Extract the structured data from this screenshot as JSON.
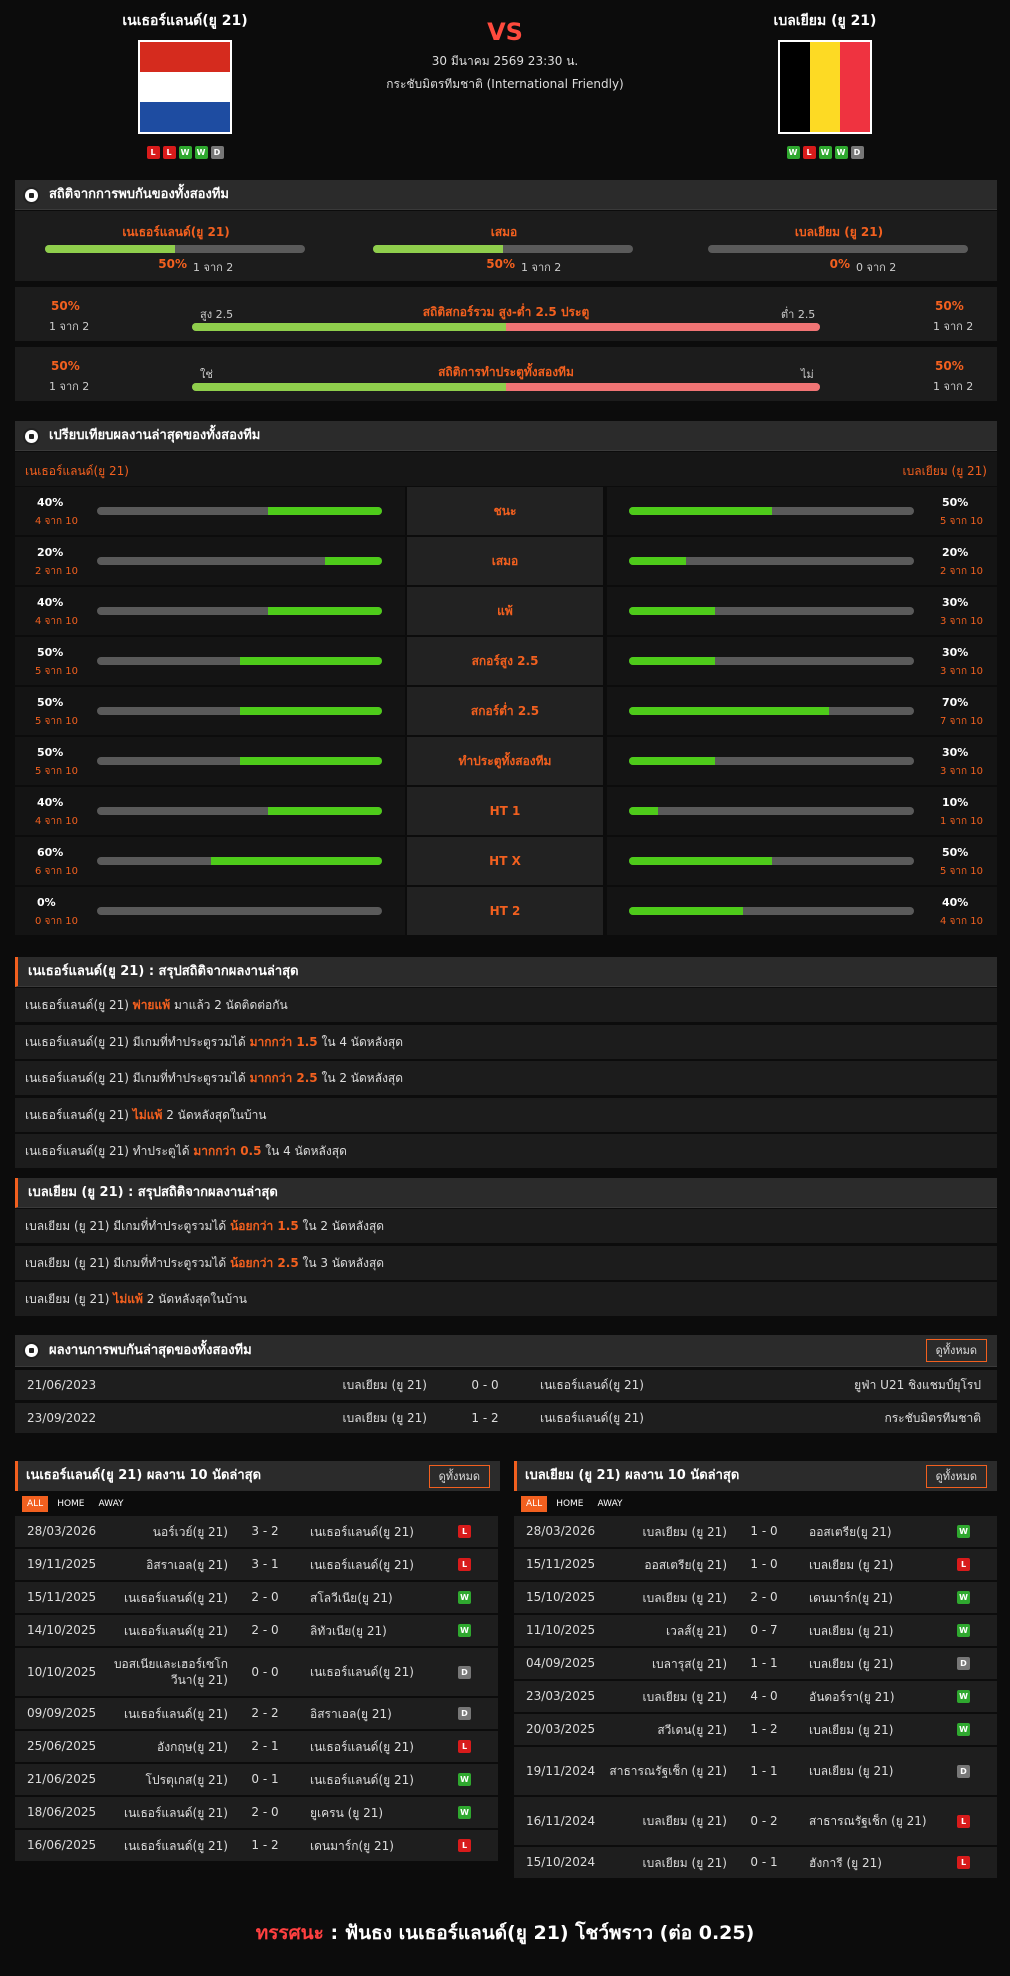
{
  "header": {
    "home": {
      "name": "เนเธอร์แลนด์(ยู 21)",
      "form": [
        "L",
        "L",
        "W",
        "W",
        "D"
      ]
    },
    "away": {
      "name": "เบลเยียม (ยู 21)",
      "form": [
        "W",
        "L",
        "W",
        "W",
        "D"
      ]
    },
    "vs": "VS",
    "date": "30 มีนาคม 2569 23:30 น.",
    "competition": "กระชับมิตรทีมชาติ (International Friendly)",
    "colors": {
      "nl_red": "#d52b1e",
      "nl_white": "#ffffff",
      "nl_blue": "#1e4ca1",
      "be_black": "#000000",
      "be_yellow": "#fdda24",
      "be_red": "#ef3340"
    }
  },
  "h2h_stats": {
    "title": "สถิติจากการพบกันของทั้งสองทีม",
    "cols": [
      {
        "label": "เนเธอร์แลนด์(ยู 21)",
        "pct": "50%",
        "sub": "1 จาก 2",
        "fill": 0.5
      },
      {
        "label": "เสมอ",
        "pct": "50%",
        "sub": "1 จาก 2",
        "fill": 0.5
      },
      {
        "label": "เบลเยียม (ยู 21)",
        "pct": "0%",
        "sub": "0 จาก 2",
        "fill": 0
      }
    ],
    "ou": {
      "title": "สถิติสกอร์รวม สูง-ต่ำ 2.5 ประตู",
      "left_label": "สูง 2.5",
      "right_label": "ต่ำ 2.5",
      "left_pct": "50%",
      "left_sub": "1 จาก 2",
      "right_pct": "50%",
      "right_sub": "1 จาก 2",
      "fill": 0.5
    },
    "btts": {
      "title": "สถิติการทำประตูทั้งสองทีม",
      "left_label": "ใช่",
      "right_label": "ไม่",
      "left_pct": "50%",
      "left_sub": "1 จาก 2",
      "right_pct": "50%",
      "right_sub": "1 จาก 2",
      "fill": 0.5
    }
  },
  "compare": {
    "title": "เปรียบเทียบผลงานล่าสุดของทั้งสองทีม",
    "home": "เนเธอร์แลนด์(ยู 21)",
    "away": "เบลเยียม (ยู 21)",
    "rows": [
      {
        "label": "ชนะ",
        "hp": "40%",
        "hs": "4 จาก 10",
        "hf": 0.4,
        "ap": "50%",
        "as": "5 จาก 10",
        "af": 0.5
      },
      {
        "label": "เสมอ",
        "hp": "20%",
        "hs": "2 จาก 10",
        "hf": 0.2,
        "ap": "20%",
        "as": "2 จาก 10",
        "af": 0.2
      },
      {
        "label": "แพ้",
        "hp": "40%",
        "hs": "4 จาก 10",
        "hf": 0.4,
        "ap": "30%",
        "as": "3 จาก 10",
        "af": 0.3
      },
      {
        "label": "สกอร์สูง 2.5",
        "hp": "50%",
        "hs": "5 จาก 10",
        "hf": 0.5,
        "ap": "30%",
        "as": "3 จาก 10",
        "af": 0.3
      },
      {
        "label": "สกอร์ต่ำ 2.5",
        "hp": "50%",
        "hs": "5 จาก 10",
        "hf": 0.5,
        "ap": "70%",
        "as": "7 จาก 10",
        "af": 0.7
      },
      {
        "label": "ทำประตูทั้งสองทีม",
        "hp": "50%",
        "hs": "5 จาก 10",
        "hf": 0.5,
        "ap": "30%",
        "as": "3 จาก 10",
        "af": 0.3
      },
      {
        "label": "HT 1",
        "hp": "40%",
        "hs": "4 จาก 10",
        "hf": 0.4,
        "ap": "10%",
        "as": "1 จาก 10",
        "af": 0.1
      },
      {
        "label": "HT X",
        "hp": "60%",
        "hs": "6 จาก 10",
        "hf": 0.6,
        "ap": "50%",
        "as": "5 จาก 10",
        "af": 0.5
      },
      {
        "label": "HT 2",
        "hp": "0%",
        "hs": "0 จาก 10",
        "hf": 0,
        "ap": "40%",
        "as": "4 จาก 10",
        "af": 0.4
      }
    ]
  },
  "home_summary": {
    "title": "เนเธอร์แลนด์(ยู 21) : สรุปสถิติจากผลงานล่าสุด",
    "rows": [
      {
        "a": "เนเธอร์แลนด์(ยู 21)",
        "b": "พ่ายแพ้",
        "c": "มาแล้ว 2 นัดติดต่อกัน"
      },
      {
        "a": "เนเธอร์แลนด์(ยู 21) มีเกมที่ทำประตูรวมได้",
        "b": "มากกว่า  1.5",
        "c": "ใน 4 นัดหลังสุด"
      },
      {
        "a": "เนเธอร์แลนด์(ยู 21) มีเกมที่ทำประตูรวมได้",
        "b": "มากกว่า  2.5",
        "c": "ใน 2 นัดหลังสุด"
      },
      {
        "a": "เนเธอร์แลนด์(ยู 21)",
        "b": "ไม่แพ้",
        "c": "2  นัดหลังสุดในบ้าน"
      },
      {
        "a": "เนเธอร์แลนด์(ยู 21) ทำประตูได้",
        "b": "มากกว่า  0.5",
        "c": "ใน 4 นัดหลังสุด"
      }
    ]
  },
  "away_summary": {
    "title": "เบลเยียม (ยู 21) : สรุปสถิติจากผลงานล่าสุด",
    "rows": [
      {
        "a": "เบลเยียม (ยู 21) มีเกมที่ทำประตูรวมได้",
        "b": "น้อยกว่า  1.5",
        "c": "ใน 2 นัดหลังสุด"
      },
      {
        "a": "เบลเยียม (ยู 21) มีเกมที่ทำประตูรวมได้",
        "b": "น้อยกว่า  2.5",
        "c": "ใน 3 นัดหลังสุด"
      },
      {
        "a": "เบลเยียม (ยู 21)",
        "b": "ไม่แพ้",
        "c": "2  นัดหลังสุดในบ้าน"
      }
    ]
  },
  "h2h_results": {
    "title": "ผลงานการพบกันล่าสุดของทั้งสองทีม",
    "btn": "ดูทั้งหมด",
    "rows": [
      {
        "date": "21/06/2023",
        "home": "เบลเยียม (ยู 21)",
        "score": "0 - 0",
        "away": "เนเธอร์แลนด์(ยู 21)",
        "comp": "ยูฟ่า U21 ชิงแชมป์ยุโรป"
      },
      {
        "date": "23/09/2022",
        "home": "เบลเยียม (ยู 21)",
        "score": "1 - 2",
        "away": "เนเธอร์แลนด์(ยู 21)",
        "comp": "กระชับมิตรทีมชาติ"
      }
    ]
  },
  "last10_home": {
    "title": "เนเธอร์แลนด์(ยู 21) ผลงาน 10 นัดล่าสุด",
    "btn": "ดูทั้งหมด",
    "tabs": [
      "ALL",
      "HOME",
      "AWAY"
    ],
    "rows": [
      {
        "date": "28/03/2026",
        "home": "นอร์เวย์(ยู 21)",
        "score": "3 - 2",
        "away": "เนเธอร์แลนด์(ยู 21)",
        "r": "L"
      },
      {
        "date": "19/11/2025",
        "home": "อิสราเอล(ยู 21)",
        "score": "3 - 1",
        "away": "เนเธอร์แลนด์(ยู 21)",
        "r": "L"
      },
      {
        "date": "15/11/2025",
        "home": "เนเธอร์แลนด์(ยู 21)",
        "score": "2 - 0",
        "away": "สโลวีเนีย(ยู 21)",
        "r": "W"
      },
      {
        "date": "14/10/2025",
        "home": "เนเธอร์แลนด์(ยู 21)",
        "score": "2 - 0",
        "away": "ลิทัวเนีย(ยู 21)",
        "r": "W"
      },
      {
        "date": "10/10/2025",
        "home": "บอสเนียและเฮอร์เซโกวีนา(ยู 21)",
        "score": "0 - 0",
        "away": "เนเธอร์แลนด์(ยู 21)",
        "r": "D",
        "tall": true
      },
      {
        "date": "09/09/2025",
        "home": "เนเธอร์แลนด์(ยู 21)",
        "score": "2 - 2",
        "away": "อิสราเอล(ยู 21)",
        "r": "D"
      },
      {
        "date": "25/06/2025",
        "home": "อังกฤษ(ยู 21)",
        "score": "2 - 1",
        "away": "เนเธอร์แลนด์(ยู 21)",
        "r": "L"
      },
      {
        "date": "21/06/2025",
        "home": "โปรตุเกส(ยู 21)",
        "score": "0 - 1",
        "away": "เนเธอร์แลนด์(ยู 21)",
        "r": "W"
      },
      {
        "date": "18/06/2025",
        "home": "เนเธอร์แลนด์(ยู 21)",
        "score": "2 - 0",
        "away": "ยูเครน (ยู 21)",
        "r": "W"
      },
      {
        "date": "16/06/2025",
        "home": "เนเธอร์แลนด์(ยู 21)",
        "score": "1 - 2",
        "away": "เดนมาร์ก(ยู 21)",
        "r": "L"
      }
    ]
  },
  "last10_away": {
    "title": "เบลเยียม (ยู 21) ผลงาน 10 นัดล่าสุด",
    "btn": "ดูทั้งหมด",
    "tabs": [
      "ALL",
      "HOME",
      "AWAY"
    ],
    "rows": [
      {
        "date": "28/03/2026",
        "home": "เบลเยียม (ยู 21)",
        "score": "1 - 0",
        "away": "ออสเตรีย(ยู 21)",
        "r": "W"
      },
      {
        "date": "15/11/2025",
        "home": "ออสเตรีย(ยู 21)",
        "score": "1 - 0",
        "away": "เบลเยียม (ยู 21)",
        "r": "L"
      },
      {
        "date": "15/10/2025",
        "home": "เบลเยียม (ยู 21)",
        "score": "2 - 0",
        "away": "เดนมาร์ก(ยู 21)",
        "r": "W"
      },
      {
        "date": "11/10/2025",
        "home": "เวลส์(ยู 21)",
        "score": "0 - 7",
        "away": "เบลเยียม (ยู 21)",
        "r": "W"
      },
      {
        "date": "04/09/2025",
        "home": "เบลารุส(ยู 21)",
        "score": "1 - 1",
        "away": "เบลเยียม (ยู 21)",
        "r": "D"
      },
      {
        "date": "23/03/2025",
        "home": "เบลเยียม (ยู 21)",
        "score": "4 - 0",
        "away": "อันดอร์รา(ยู 21)",
        "r": "W"
      },
      {
        "date": "20/03/2025",
        "home": "สวีเดน(ยู 21)",
        "score": "1 - 2",
        "away": "เบลเยียม (ยู 21)",
        "r": "W"
      },
      {
        "date": "19/11/2024",
        "home": "สาธารณรัฐเช็ก (ยู 21)",
        "score": "1 - 1",
        "away": "เบลเยียม (ยู 21)",
        "r": "D",
        "tall": true
      },
      {
        "date": "16/11/2024",
        "home": "เบลเยียม (ยู 21)",
        "score": "0 - 2",
        "away": "สาธารณรัฐเช็ก (ยู 21)",
        "r": "L",
        "tall": true
      },
      {
        "date": "15/10/2024",
        "home": "เบลเยียม (ยู 21)",
        "score": "0 - 1",
        "away": "ฮังการี (ยู 21)",
        "r": "L"
      }
    ]
  },
  "verdict": {
    "label": "ทรรศนะ",
    "sep": " : ",
    "text": "ฟันธง เนเธอร์แลนด์(ยู 21) โชว์พราว (ต่อ 0.25)"
  }
}
